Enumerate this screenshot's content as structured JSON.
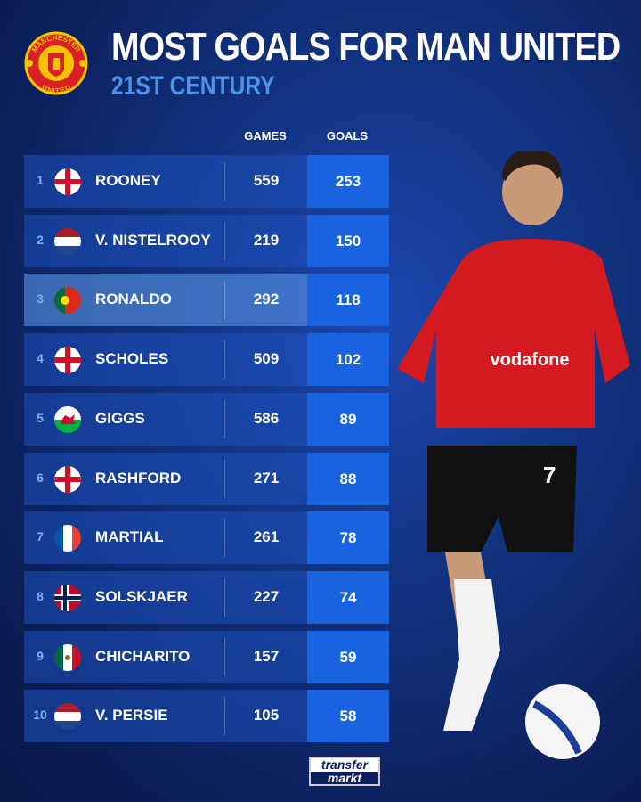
{
  "header": {
    "title": "MOST GOALS FOR MAN UNITED",
    "subtitle": "21ST CENTURY",
    "crest_text": [
      "MANCHESTER",
      "UNITED"
    ]
  },
  "chart_data": {
    "type": "table",
    "columns": [
      "GAMES",
      "GOALS"
    ],
    "rows": [
      {
        "rank": "1",
        "name": "ROONEY",
        "flag": "england",
        "games": "559",
        "goals": "253"
      },
      {
        "rank": "2",
        "name": "V. NISTELROOY",
        "flag": "netherlands",
        "games": "219",
        "goals": "150"
      },
      {
        "rank": "3",
        "name": "RONALDO",
        "flag": "portugal",
        "games": "292",
        "goals": "118",
        "highlighted": true
      },
      {
        "rank": "4",
        "name": "SCHOLES",
        "flag": "england",
        "games": "509",
        "goals": "102"
      },
      {
        "rank": "5",
        "name": "GIGGS",
        "flag": "wales",
        "games": "586",
        "goals": "89"
      },
      {
        "rank": "6",
        "name": "RASHFORD",
        "flag": "england",
        "games": "271",
        "goals": "88"
      },
      {
        "rank": "7",
        "name": "MARTIAL",
        "flag": "france",
        "games": "261",
        "goals": "78"
      },
      {
        "rank": "8",
        "name": "SOLSKJAER",
        "flag": "norway",
        "games": "227",
        "goals": "74"
      },
      {
        "rank": "9",
        "name": "CHICHARITO",
        "flag": "mexico",
        "games": "157",
        "goals": "59"
      },
      {
        "rank": "10",
        "name": "V. PERSIE",
        "flag": "netherlands",
        "games": "105",
        "goals": "58"
      }
    ]
  },
  "player_image": {
    "shirt_sponsor": "vodafone",
    "shirt_number": "7"
  },
  "footer": {
    "logo_line1": "transfer",
    "logo_line2": "markt"
  },
  "colors": {
    "background": "#12327f",
    "goals_cell": "#1a63e0",
    "subtitle": "#4f93e8"
  }
}
